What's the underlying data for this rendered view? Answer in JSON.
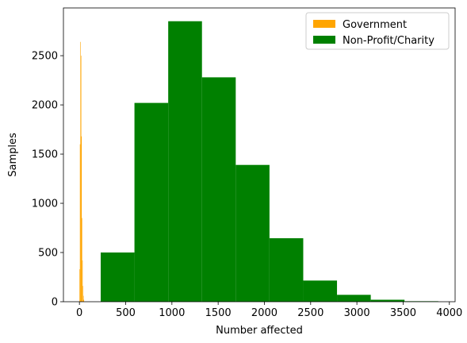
{
  "chart_data": {
    "type": "histogram",
    "title": "",
    "xlabel": "Number affected",
    "ylabel": "Samples",
    "xlim": [
      -173,
      4062
    ],
    "ylim": [
      0,
      2985
    ],
    "x_ticks": [
      0,
      500,
      1000,
      1500,
      2000,
      2500,
      3000,
      3500,
      4000
    ],
    "y_ticks": [
      0,
      500,
      1000,
      1500,
      2000,
      2500
    ],
    "grid": false,
    "legend_position": "top-right",
    "series": [
      {
        "name": "Government",
        "color": "#ffa500",
        "bins": [
          {
            "x0": 0,
            "x1": 5,
            "count": 330
          },
          {
            "x0": 5,
            "x1": 10,
            "count": 1600
          },
          {
            "x0": 10,
            "x1": 15,
            "count": 2640
          },
          {
            "x0": 15,
            "x1": 20,
            "count": 2500
          },
          {
            "x0": 20,
            "x1": 25,
            "count": 1680
          },
          {
            "x0": 25,
            "x1": 30,
            "count": 850
          },
          {
            "x0": 30,
            "x1": 35,
            "count": 420
          },
          {
            "x0": 35,
            "x1": 40,
            "count": 160
          },
          {
            "x0": 40,
            "x1": 45,
            "count": 60
          },
          {
            "x0": 45,
            "x1": 50,
            "count": 20
          }
        ]
      },
      {
        "name": "Non-Profit/Charity",
        "color": "#008000",
        "bins": [
          {
            "x0": 230,
            "x1": 595,
            "count": 500
          },
          {
            "x0": 595,
            "x1": 960,
            "count": 2020
          },
          {
            "x0": 960,
            "x1": 1325,
            "count": 2850
          },
          {
            "x0": 1325,
            "x1": 1690,
            "count": 2280
          },
          {
            "x0": 1690,
            "x1": 2055,
            "count": 1390
          },
          {
            "x0": 2055,
            "x1": 2420,
            "count": 645
          },
          {
            "x0": 2420,
            "x1": 2785,
            "count": 215
          },
          {
            "x0": 2785,
            "x1": 3150,
            "count": 70
          },
          {
            "x0": 3150,
            "x1": 3515,
            "count": 20
          },
          {
            "x0": 3515,
            "x1": 3880,
            "count": 5
          }
        ]
      }
    ]
  }
}
